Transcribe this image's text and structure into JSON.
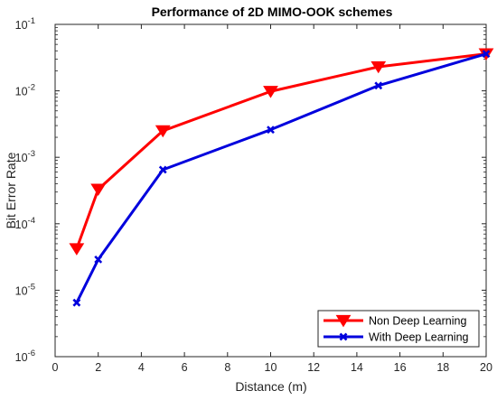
{
  "chart_data": {
    "type": "line",
    "title": "Performance of 2D MIMO-OOK schemes",
    "xlabel": "Distance (m)",
    "ylabel": "Bit Error Rate",
    "xlim": [
      0,
      20
    ],
    "ylim": [
      1e-06,
      0.1
    ],
    "yscale": "log",
    "x_ticks": [
      "0",
      "2",
      "4",
      "6",
      "8",
      "10",
      "12",
      "14",
      "16",
      "18",
      "20"
    ],
    "y_ticks": [
      {
        "base": "10",
        "exp": "-6"
      },
      {
        "base": "10",
        "exp": "-5"
      },
      {
        "base": "10",
        "exp": "-4"
      },
      {
        "base": "10",
        "exp": "-3"
      },
      {
        "base": "10",
        "exp": "-2"
      },
      {
        "base": "10",
        "exp": "-1"
      }
    ],
    "grid": false,
    "legend_position": "bottom-right",
    "series": [
      {
        "name": "Non Deep Learning",
        "color": "#ff0000",
        "marker": "triangle-down",
        "x": [
          1,
          2,
          5,
          10,
          15,
          20
        ],
        "y": [
          4.2e-05,
          0.00033,
          0.0025,
          0.0098,
          0.023,
          0.036
        ]
      },
      {
        "name": "With Deep Learning",
        "color": "#0000dd",
        "marker": "x",
        "x": [
          1,
          2,
          5,
          10,
          15,
          20
        ],
        "y": [
          6.5e-06,
          2.9e-05,
          0.00065,
          0.0026,
          0.012,
          0.036
        ]
      }
    ]
  }
}
